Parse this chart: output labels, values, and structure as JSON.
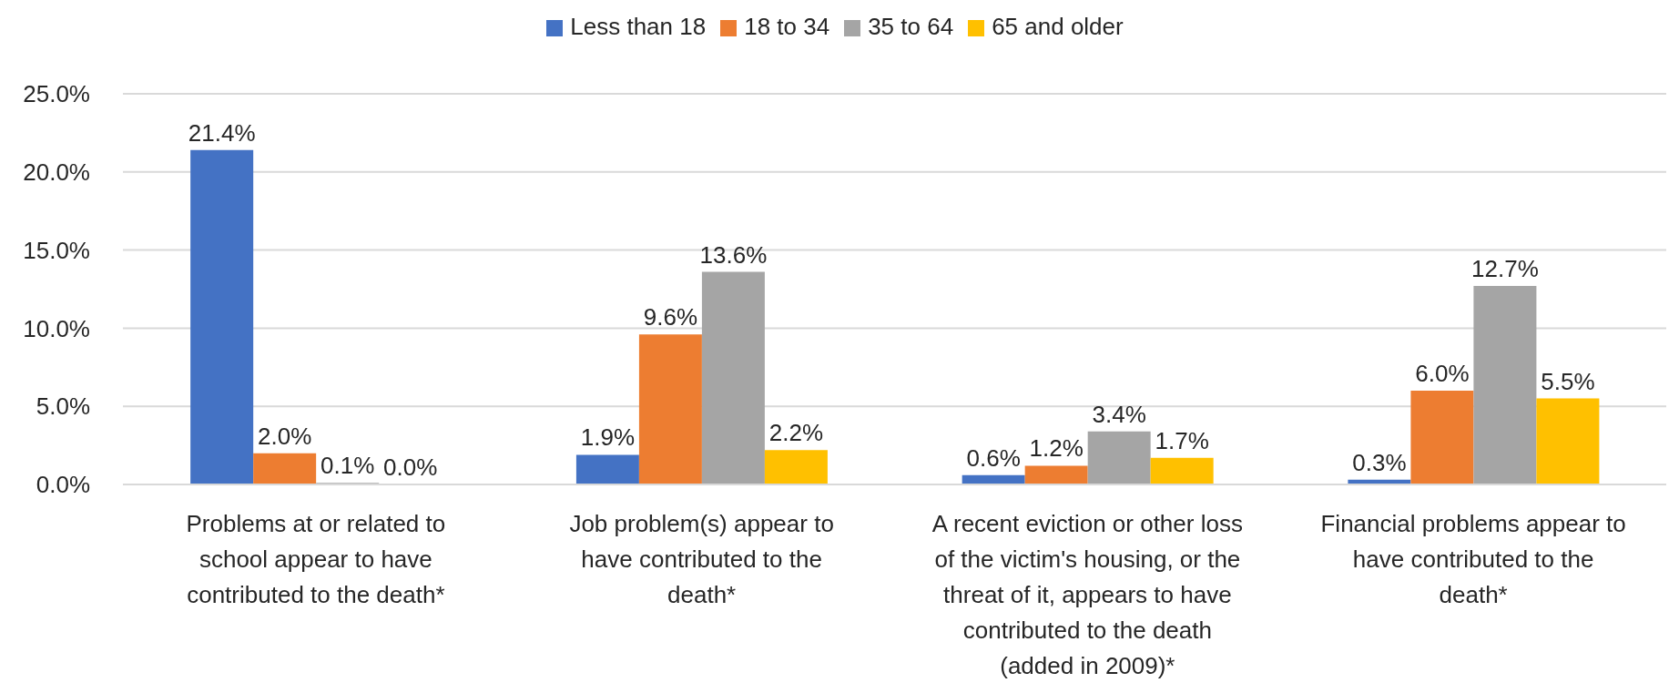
{
  "chart_data": {
    "type": "bar",
    "categories": [
      "Problems at or related to school appear to have contributed to the death*",
      "Job problem(s) appear to have contributed to the death*",
      "A recent eviction or other loss of the victim's housing, or the threat of it, appears to have contributed to the death (added in 2009)*",
      "Financial problems appear to have contributed to the death*"
    ],
    "series": [
      {
        "name": "Less than 18",
        "color": "#4472c4",
        "values": [
          21.4,
          1.9,
          0.6,
          0.3
        ],
        "value_labels": [
          "21.4%",
          "1.9%",
          "0.6%",
          "0.3%"
        ]
      },
      {
        "name": "18 to 34",
        "color": "#ed7d31",
        "values": [
          2.0,
          9.6,
          1.2,
          6.0
        ],
        "value_labels": [
          "2.0%",
          "9.6%",
          "1.2%",
          "6.0%"
        ]
      },
      {
        "name": "35 to 64",
        "color": "#a5a5a5",
        "values": [
          0.1,
          13.6,
          3.4,
          12.7
        ],
        "value_labels": [
          "0.1%",
          "13.6%",
          "3.4%",
          "12.7%"
        ]
      },
      {
        "name": "65 and older",
        "color": "#ffc000",
        "values": [
          0.0,
          2.2,
          1.7,
          5.5
        ],
        "value_labels": [
          "0.0%",
          "2.2%",
          "1.7%",
          "5.5%"
        ]
      }
    ],
    "ylim": [
      0,
      25
    ],
    "yticks": [
      {
        "value": 0,
        "label": "0.0%"
      },
      {
        "value": 5,
        "label": "5.0%"
      },
      {
        "value": 10,
        "label": "10.0%"
      },
      {
        "value": 15,
        "label": "15.0%"
      },
      {
        "value": 20,
        "label": "20.0%"
      },
      {
        "value": 25,
        "label": "25.0%"
      }
    ],
    "grid": "y",
    "legend": "top"
  }
}
